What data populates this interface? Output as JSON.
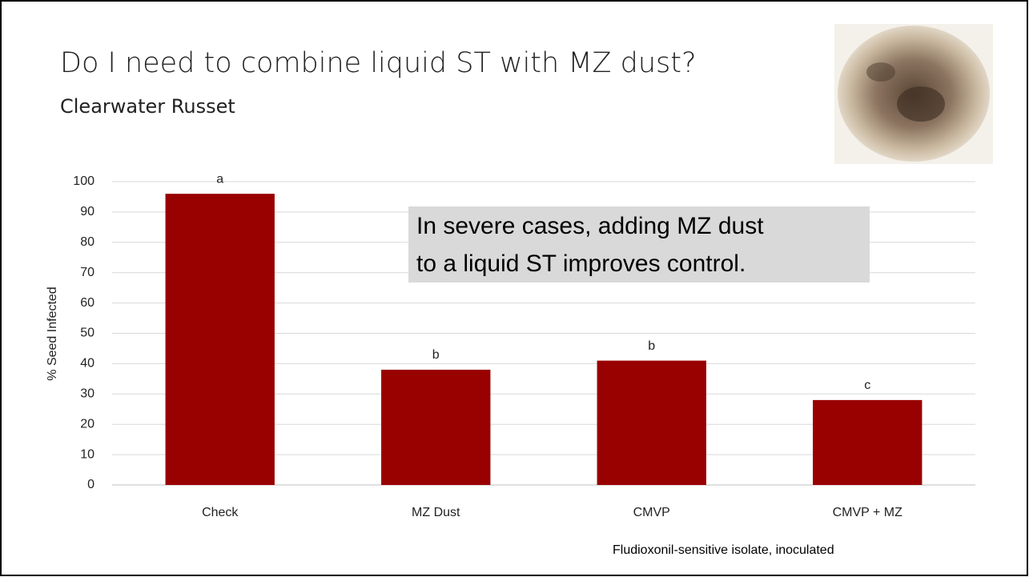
{
  "chart_data": {
    "type": "bar",
    "title": "Do I need to combine liquid ST with MZ dust?",
    "subtitle": "Clearwater Russet",
    "y_label": "% Seed Infected",
    "categories": [
      "Check",
      "MZ Dust",
      "CMVP",
      "CMVP + MZ"
    ],
    "values": [
      96,
      38,
      41,
      28
    ],
    "significance_letters": [
      "a",
      "b",
      "b",
      "c"
    ],
    "color": "#990000",
    "ylim": [
      0,
      100
    ],
    "yticks": [
      0,
      10,
      20,
      30,
      40,
      50,
      60,
      70,
      80,
      90,
      100
    ],
    "grid": true,
    "callout": [
      "In severe cases, adding MZ dust",
      "to a liquid ST improves control."
    ],
    "footnote": "Fludioxonil-sensitive isolate, inoculated"
  }
}
